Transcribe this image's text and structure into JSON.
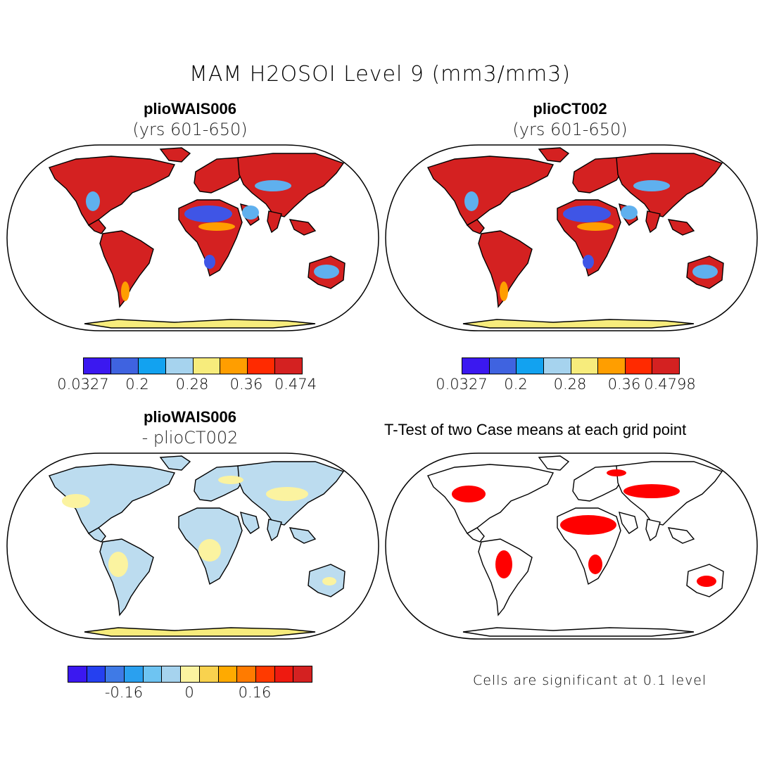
{
  "figure": {
    "main_title": "MAM H2OSOI Level 9 (mm3/mm3)"
  },
  "panels": [
    {
      "title": "plioWAIS006",
      "subtitle": "(yrs 601-650)"
    },
    {
      "title": "plioCT002",
      "subtitle": "(yrs 601-650)"
    },
    {
      "title": "plioWAIS006",
      "subtitle": "- plioCT002"
    },
    {
      "title": "T-Test of two Case means at each grid point"
    }
  ],
  "colorbars": [
    {
      "colors": [
        "#3b18f0",
        "#3f63e0",
        "#12a2f0",
        "#a6d3ee",
        "#f7ec7c",
        "#ff9e00",
        "#ff2a00",
        "#d42121"
      ],
      "labels": [
        "0.0327",
        "0.2",
        "0.28",
        "0.36",
        "0.474"
      ]
    },
    {
      "colors": [
        "#3b18f0",
        "#3f63e0",
        "#12a2f0",
        "#a6d3ee",
        "#f7ec7c",
        "#ff9e00",
        "#ff2a00",
        "#d42121"
      ],
      "labels": [
        "0.0327",
        "0.2",
        "0.28",
        "0.36",
        "0.4798"
      ]
    },
    {
      "colors": [
        "#3b18f0",
        "#2540f0",
        "#3f7ae6",
        "#2aa0ef",
        "#6ec4f2",
        "#a6d3ee",
        "#fbf3a0",
        "#f9d24e",
        "#ffaa00",
        "#ff7b00",
        "#ff3a00",
        "#ee1a10",
        "#d42121"
      ],
      "labels": [
        "-0.16",
        "0",
        "0.16"
      ]
    }
  ],
  "significance_note": "Cells are significant at 0.1 level"
}
